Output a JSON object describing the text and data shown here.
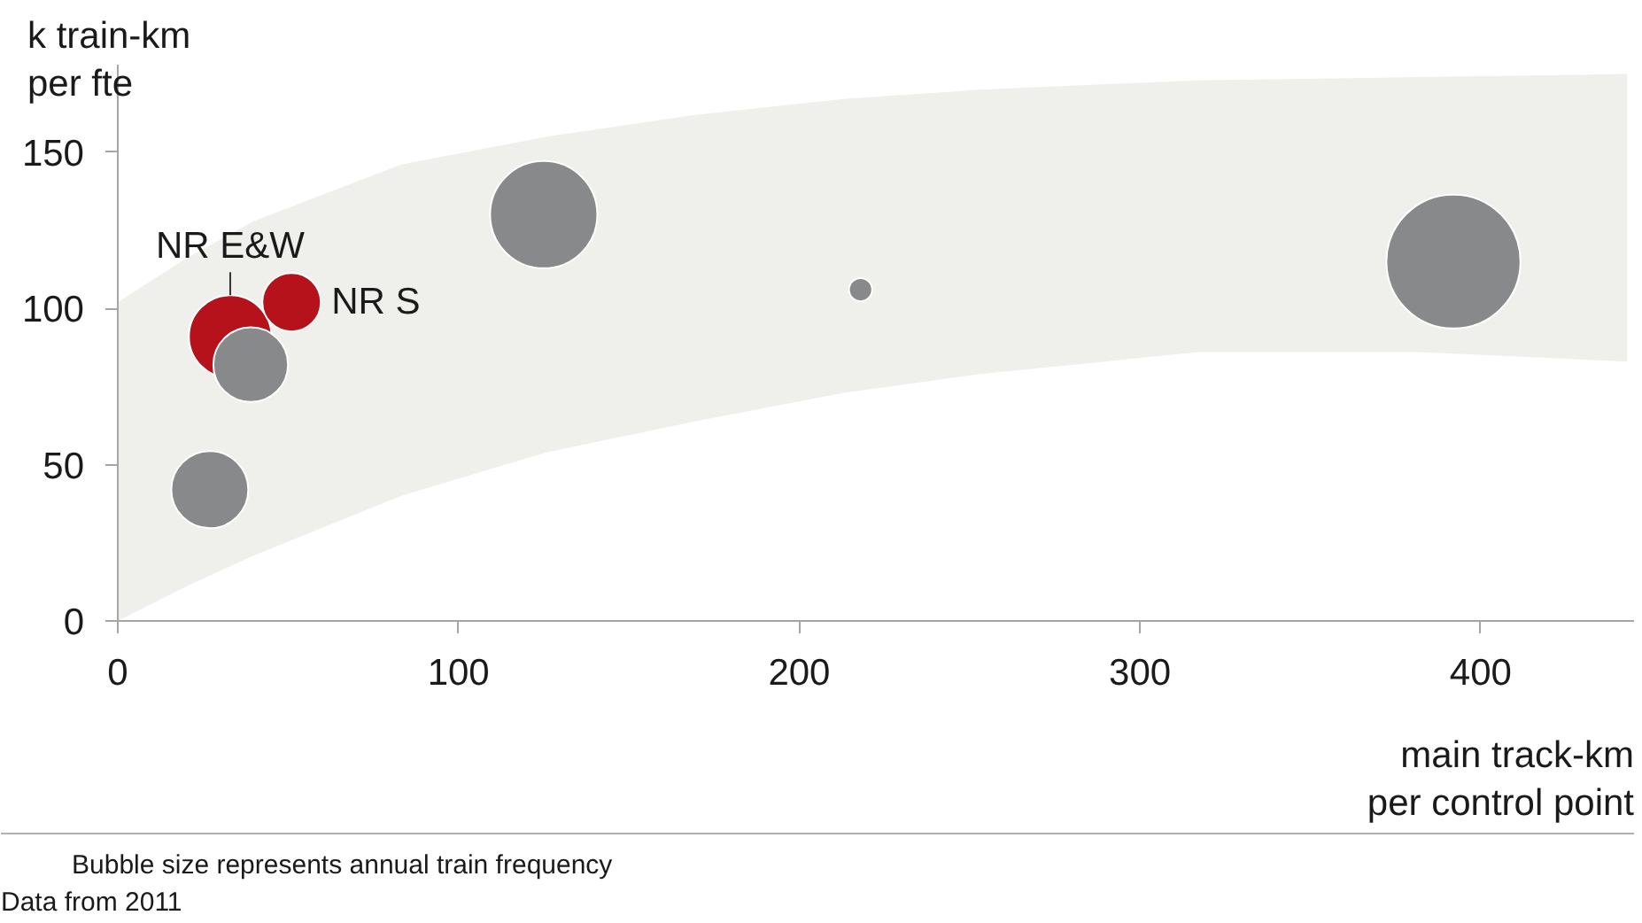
{
  "chart_data": {
    "type": "bubble",
    "xlabel": "main track-km\nper control point",
    "ylabel": "k train-km\nper fte",
    "xlim": [
      0,
      445
    ],
    "ylim": [
      0,
      178
    ],
    "xticks": [
      0,
      100,
      200,
      300,
      400
    ],
    "yticks": [
      0,
      50,
      100,
      150
    ],
    "grid": false,
    "legend": false,
    "marker": "circle",
    "annotations": [
      "Bubble size represents annual train frequency",
      "Data from 2011"
    ],
    "series": [
      {
        "type": "line",
        "color": "#efefeb",
        "x": [
          0,
          20,
          40,
          83,
          126,
          170,
          213,
          253,
          317,
          382,
          443
        ],
        "values": [
          null,
          null,
          null,
          null,
          null,
          null,
          null,
          null,
          null,
          null,
          null
        ],
        "lower": [
          0,
          11,
          21,
          40,
          54,
          64,
          73,
          79,
          86,
          86,
          83
        ],
        "upper": [
          102,
          116,
          128,
          146,
          155,
          162,
          167,
          170,
          173,
          174,
          175
        ]
      },
      {
        "name": "NR E&W",
        "color": "#b5121b",
        "x": [
          33
        ],
        "values": [
          91
        ],
        "sizes": [
          0.38
        ]
      },
      {
        "name": "NR S",
        "color": "#b5121b",
        "x": [
          51
        ],
        "values": [
          102
        ],
        "sizes": [
          0.19
        ]
      },
      {
        "color": "#88898b",
        "x": [
          27,
          39,
          125,
          218,
          392
        ],
        "values": [
          42,
          82,
          130,
          106,
          115
        ],
        "sizes": [
          0.33,
          0.31,
          0.64,
          0.03,
          1
        ]
      }
    ]
  }
}
